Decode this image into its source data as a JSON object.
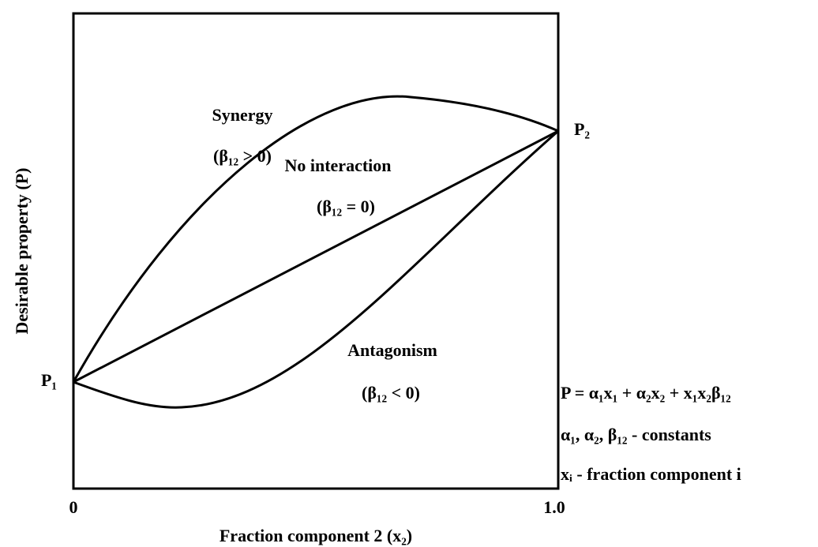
{
  "title": null,
  "axes": {
    "x_label": "Fraction component 2 (x₂)",
    "y_label": "Desirable  property (P)",
    "x_start": "0",
    "x_end": "1.0"
  },
  "points": {
    "p1": "P₁",
    "p2": "P₂"
  },
  "curves": {
    "synergy": {
      "name": "Synergy",
      "condition": "(β₁₂ > 0)"
    },
    "no_interaction": {
      "name": "No interaction",
      "condition": "(β₁₂ = 0)"
    },
    "antagonism": {
      "name": "Antagonism",
      "condition": "(β₁₂ < 0)"
    }
  },
  "equations": [
    "P = α₁x₁ + α₂x₂ + x₁x₂β₁₂",
    "α₁, α₂, β₁₂ - constants",
    "xᵢ - fraction component i"
  ]
}
